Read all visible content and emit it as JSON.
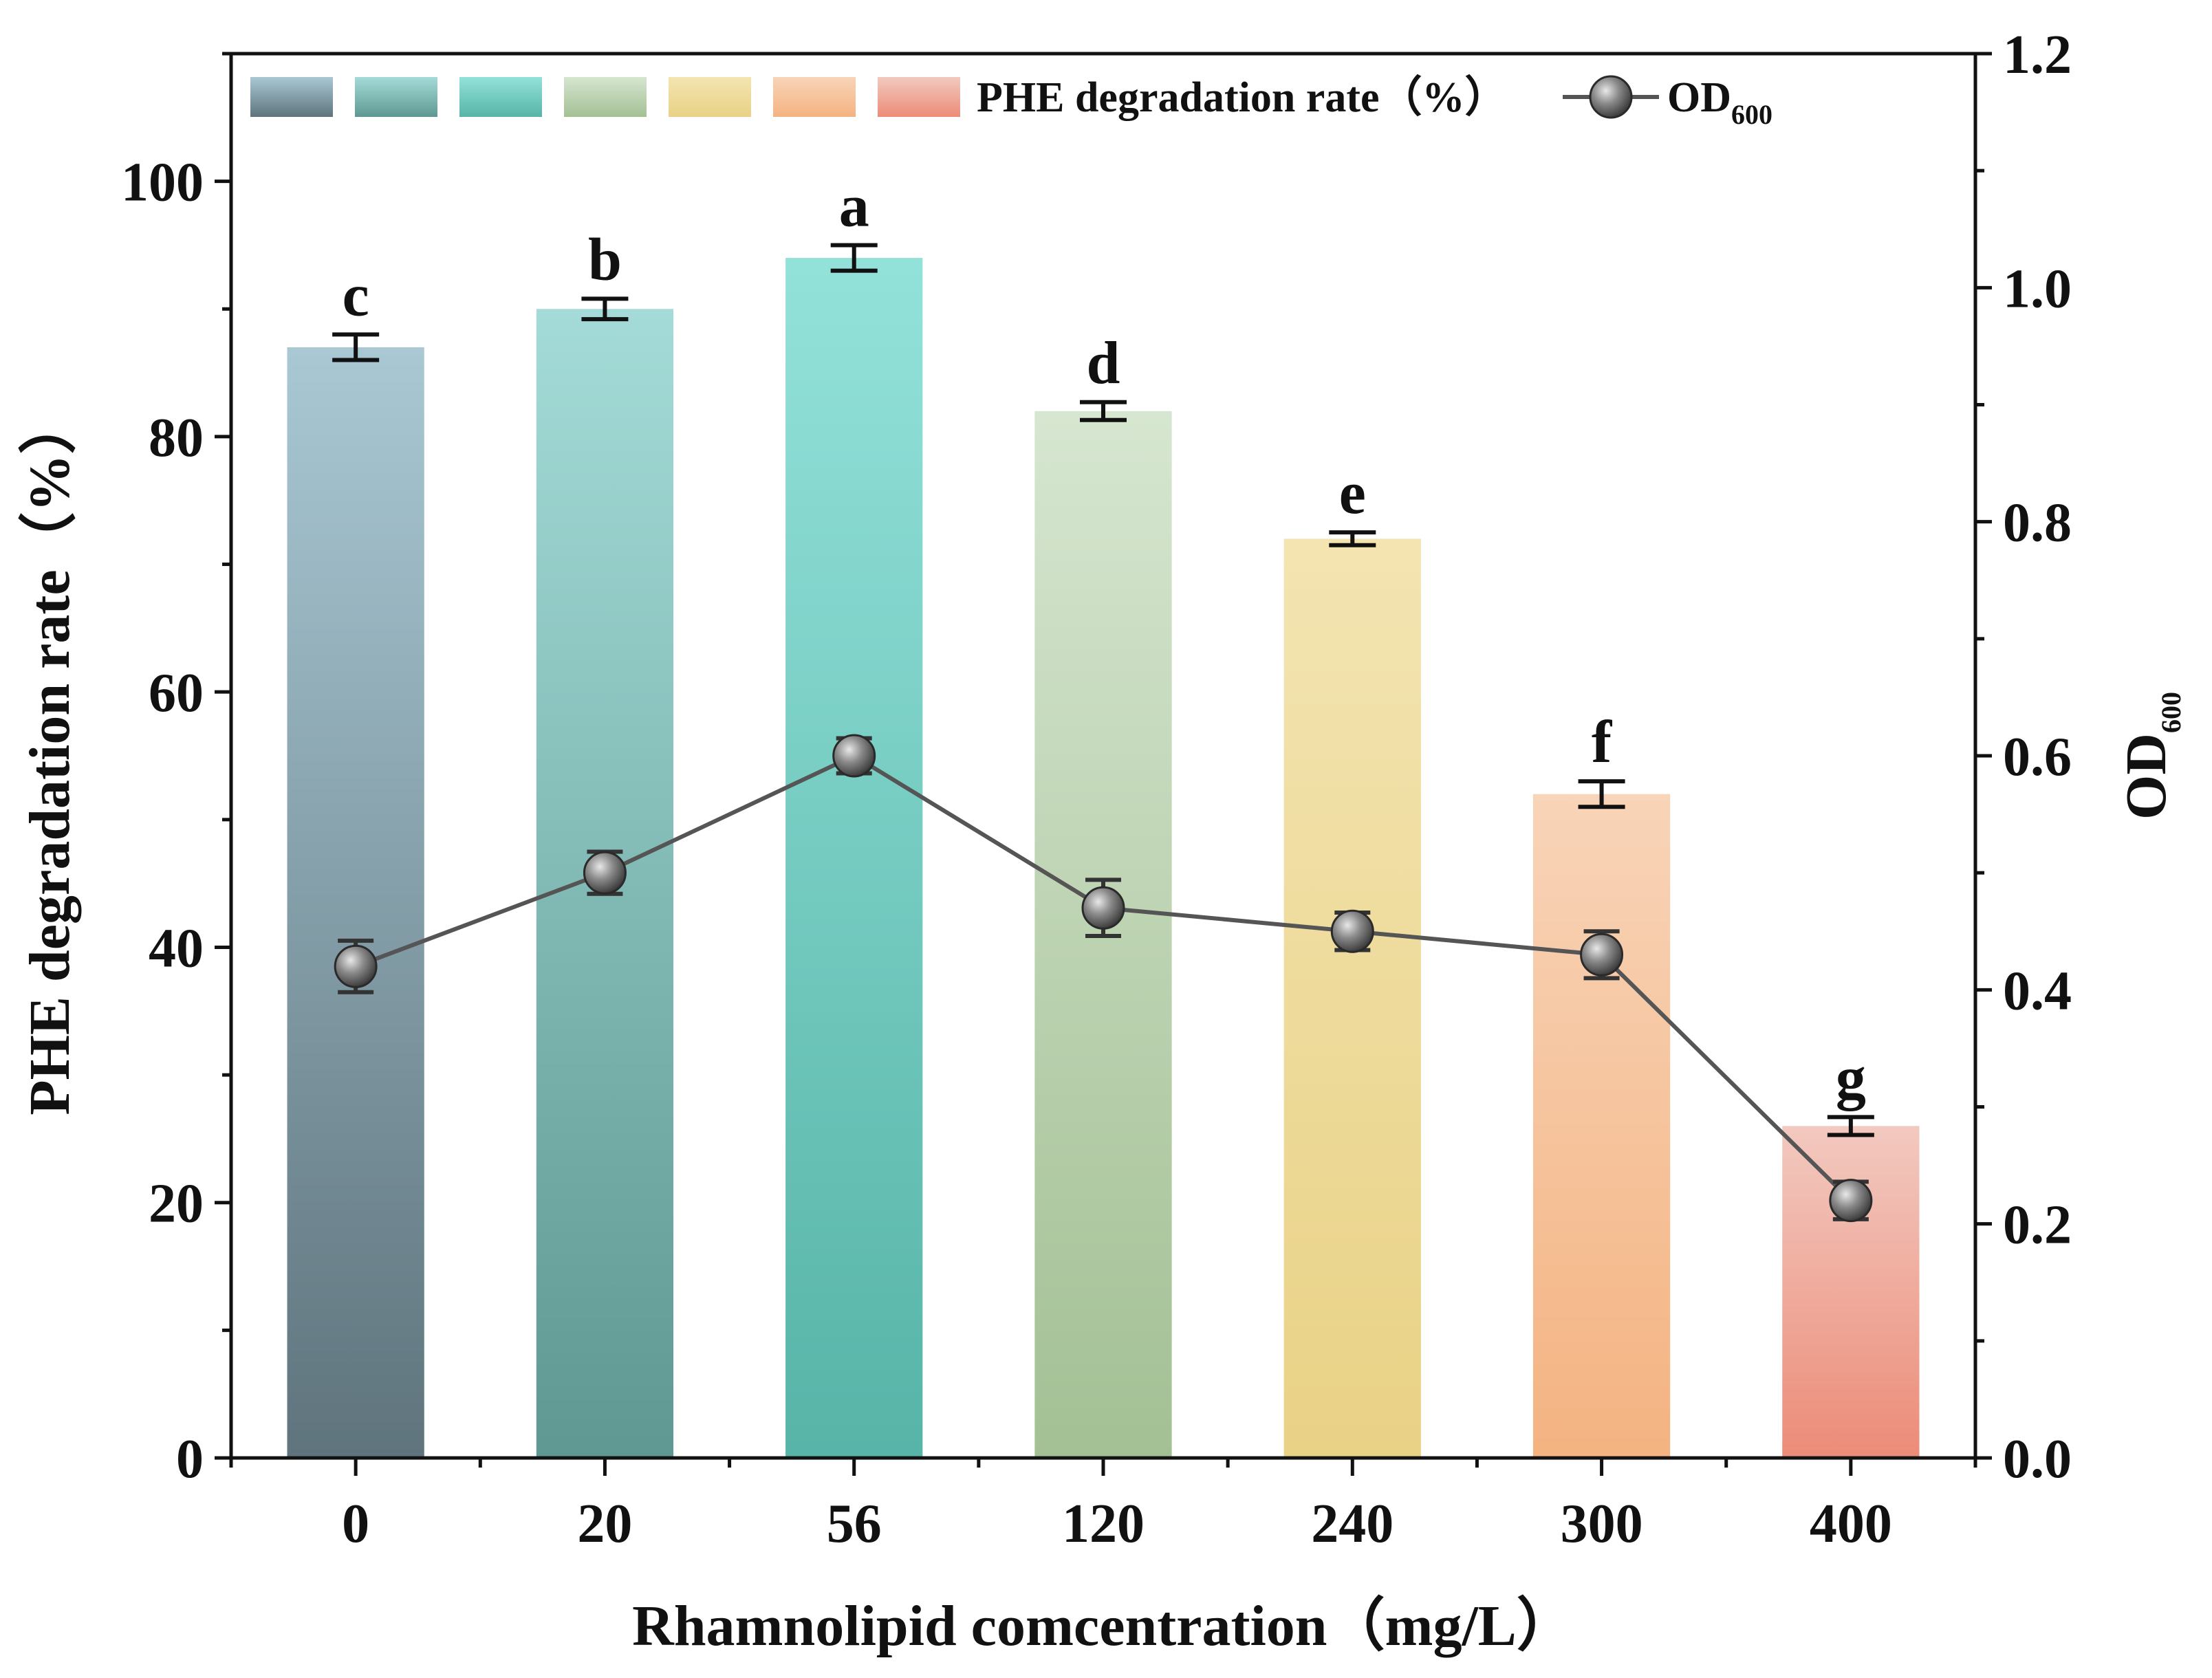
{
  "chart_data": {
    "type": "bar",
    "xlabel": "Rhamnolipid comcentration（mg/L）",
    "ylabel": "PHE degradation rate（%）",
    "y2label_main": "OD",
    "y2label_sub": "600",
    "categories": [
      "0",
      "20",
      "56",
      "120",
      "240",
      "300",
      "400"
    ],
    "ylim": [
      0,
      110
    ],
    "yticks": [
      0,
      20,
      40,
      60,
      80,
      100
    ],
    "y2lim": [
      0,
      1.2
    ],
    "y2ticks": [
      "0.0",
      "0.2",
      "0.4",
      "0.6",
      "0.8",
      "1.0",
      "1.2"
    ],
    "series": [
      {
        "name": "PHE degradation rate（%）",
        "type": "bar",
        "axis": "left",
        "values": [
          87,
          90,
          94,
          82,
          72,
          52,
          26
        ],
        "errors": [
          1.0,
          0.8,
          1.0,
          0.7,
          0.5,
          1.0,
          0.7
        ],
        "significance": [
          "c",
          "b",
          "a",
          "d",
          "e",
          "f",
          "g"
        ]
      },
      {
        "name": "OD",
        "name_sub": "600",
        "type": "line",
        "axis": "right",
        "values": [
          0.42,
          0.5,
          0.6,
          0.47,
          0.45,
          0.43,
          0.22
        ],
        "errors": [
          0.022,
          0.018,
          0.015,
          0.024,
          0.016,
          0.02,
          0.016
        ]
      }
    ],
    "colors": {
      "bars_top": [
        "#a9c8d4",
        "#a4dbd8",
        "#93e2da",
        "#d6e6d0",
        "#f3e4b1",
        "#f8d4b8",
        "#f2c9c0"
      ],
      "bars_bottom": [
        "#5f747d",
        "#5f9893",
        "#57b4a7",
        "#a3c094",
        "#e9d286",
        "#f4b381",
        "#ec8c78"
      ],
      "od_line": "#555555",
      "od_marker_light": "#e8e8e8",
      "od_marker_dark": "#333333"
    },
    "legend": {
      "position": "top",
      "label": "PHE degradation rate（%）",
      "od_label": "OD",
      "od_sub": "600"
    }
  }
}
